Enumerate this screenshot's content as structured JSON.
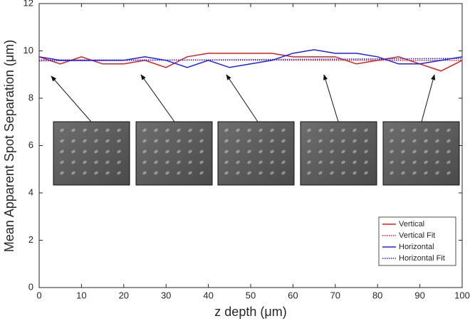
{
  "chart_data": {
    "type": "line",
    "xlabel": "z depth (μm)",
    "ylabel": "Mean Apparent Spot Separation (μm)",
    "xlim": [
      0,
      100
    ],
    "ylim": [
      0,
      12
    ],
    "xticks": [
      0,
      10,
      20,
      30,
      40,
      50,
      60,
      70,
      80,
      90,
      100
    ],
    "yticks": [
      0,
      2,
      4,
      6,
      8,
      10,
      12
    ],
    "grid": false,
    "legend": "lower right",
    "series": [
      {
        "name": "Vertical",
        "color": "#d62020",
        "dash": "solid",
        "x": [
          0,
          5,
          10,
          15,
          20,
          25,
          30,
          35,
          40,
          45,
          50,
          55,
          60,
          65,
          70,
          75,
          80,
          85,
          90,
          95,
          100
        ],
        "values": [
          9.75,
          9.45,
          9.75,
          9.45,
          9.45,
          9.6,
          9.3,
          9.75,
          9.9,
          9.9,
          9.9,
          9.9,
          9.75,
          9.75,
          9.75,
          9.45,
          9.6,
          9.75,
          9.45,
          9.15,
          9.6
        ]
      },
      {
        "name": "Vertical Fit",
        "color": "#d62020",
        "dash": "dotted",
        "x": [
          0,
          100
        ],
        "values": [
          9.62,
          9.6
        ]
      },
      {
        "name": "Horizontal",
        "color": "#2020f0",
        "dash": "solid",
        "x": [
          0,
          5,
          10,
          15,
          20,
          25,
          30,
          35,
          40,
          45,
          50,
          55,
          60,
          65,
          70,
          75,
          80,
          85,
          90,
          95,
          100
        ],
        "values": [
          9.75,
          9.6,
          9.6,
          9.6,
          9.6,
          9.75,
          9.6,
          9.3,
          9.6,
          9.3,
          9.45,
          9.6,
          9.9,
          10.05,
          9.9,
          9.9,
          9.75,
          9.45,
          9.45,
          9.6,
          9.75
        ]
      },
      {
        "name": "Horizontal Fit",
        "color": "#2020f0",
        "dash": "dotted",
        "x": [
          0,
          100
        ],
        "values": [
          9.58,
          9.68
        ]
      }
    ]
  }
}
